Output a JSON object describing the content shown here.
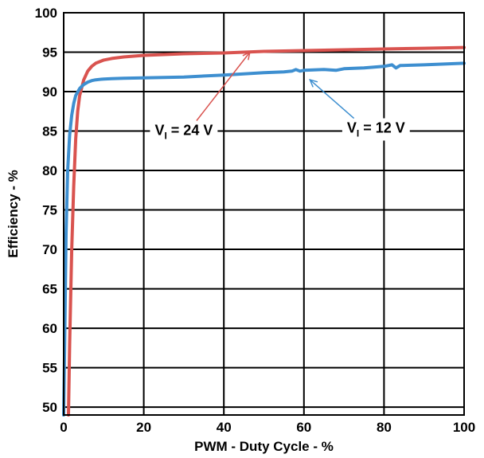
{
  "chart_data": {
    "type": "line",
    "title": "",
    "xlabel": "PWM - Duty Cycle - %",
    "ylabel": "Efficiency - %",
    "xlim": [
      0,
      100
    ],
    "ylim": [
      49,
      100
    ],
    "xticks": [
      "0",
      "20",
      "40",
      "60",
      "80",
      "100"
    ],
    "yticks": [
      "50",
      "55",
      "60",
      "65",
      "70",
      "75",
      "80",
      "85",
      "90",
      "95",
      "100"
    ],
    "grid": true,
    "series": [
      {
        "color": "#d9534f",
        "x": [
          1.2,
          1.5,
          2,
          2.5,
          3,
          3.5,
          4,
          5,
          6,
          7,
          8,
          10,
          12,
          15,
          20,
          25,
          30,
          40,
          50,
          60,
          70,
          80,
          90,
          100
        ],
        "y": [
          49,
          58,
          70,
          78,
          84,
          87.5,
          89.5,
          91.5,
          92.6,
          93.2,
          93.6,
          94.0,
          94.2,
          94.4,
          94.6,
          94.7,
          94.8,
          94.9,
          95.1,
          95.2,
          95.3,
          95.4,
          95.5,
          95.6
        ]
      },
      {
        "color": "#3e8fd0",
        "x": [
          0,
          0.3,
          0.6,
          1,
          1.5,
          2,
          2.5,
          3,
          4,
          5,
          6,
          7,
          8,
          10,
          12,
          15,
          20,
          25,
          30,
          40,
          50,
          55,
          57,
          58,
          59,
          60,
          65,
          68,
          70,
          75,
          80,
          82,
          83,
          84,
          90,
          100
        ],
        "y": [
          49,
          60,
          72,
          80,
          84.5,
          87,
          88.5,
          89.5,
          90.4,
          90.9,
          91.2,
          91.4,
          91.5,
          91.6,
          91.65,
          91.7,
          91.75,
          91.8,
          91.85,
          92.1,
          92.4,
          92.5,
          92.6,
          92.8,
          92.6,
          92.7,
          92.8,
          92.7,
          92.9,
          93.0,
          93.2,
          93.4,
          93.0,
          93.3,
          93.4,
          93.6
        ]
      }
    ],
    "annotations": [
      {
        "main": "V",
        "sub": "I",
        "suffix": " = 24 V",
        "color": "#d9534f",
        "target_x": 46.5,
        "target_y": 95.0,
        "text_x": 30,
        "text_y": 84.5
      },
      {
        "main": "V",
        "sub": "I",
        "suffix": " = 12 V",
        "color": "#3e8fd0",
        "target_x": 61.5,
        "target_y": 91.5,
        "text_x": 78,
        "text_y": 84.8
      }
    ]
  }
}
